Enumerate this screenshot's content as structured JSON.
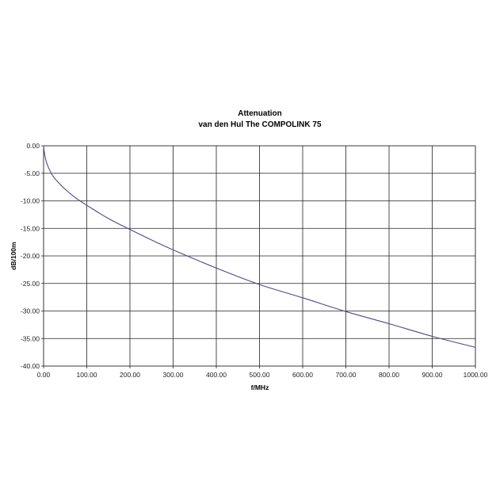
{
  "chart_data": {
    "type": "line",
    "title": "Attenuation",
    "subtitle": "van den Hul The COMPOLINK 75",
    "xlabel": "f/MHz",
    "ylabel": "dB/100m",
    "xlim": [
      0,
      1000
    ],
    "ylim": [
      -40,
      0
    ],
    "xticks": [
      "0.00",
      "100.00",
      "200.00",
      "300.00",
      "400.00",
      "500.00",
      "600.00",
      "700.00",
      "800.00",
      "900.00",
      "1000.00"
    ],
    "yticks": [
      "0.00",
      "-5.00",
      "-10.00",
      "-15.00",
      "-20.00",
      "-25.00",
      "-30.00",
      "-35.00",
      "-40.00"
    ],
    "grid": true,
    "legend": "none",
    "series": [
      {
        "name": "Attenuation",
        "color": "#4a4a8a",
        "x": [
          0,
          1,
          5,
          10,
          20,
          30,
          50,
          75,
          100,
          150,
          200,
          250,
          300,
          400,
          500,
          600,
          700,
          800,
          900,
          1000
        ],
        "y": [
          0,
          -0.8,
          -2.5,
          -3.7,
          -5.3,
          -6.3,
          -7.9,
          -9.5,
          -10.8,
          -13.2,
          -15.2,
          -17.1,
          -18.9,
          -22.2,
          -25.2,
          -27.6,
          -30.1,
          -32.3,
          -34.6,
          -36.6
        ]
      }
    ]
  }
}
